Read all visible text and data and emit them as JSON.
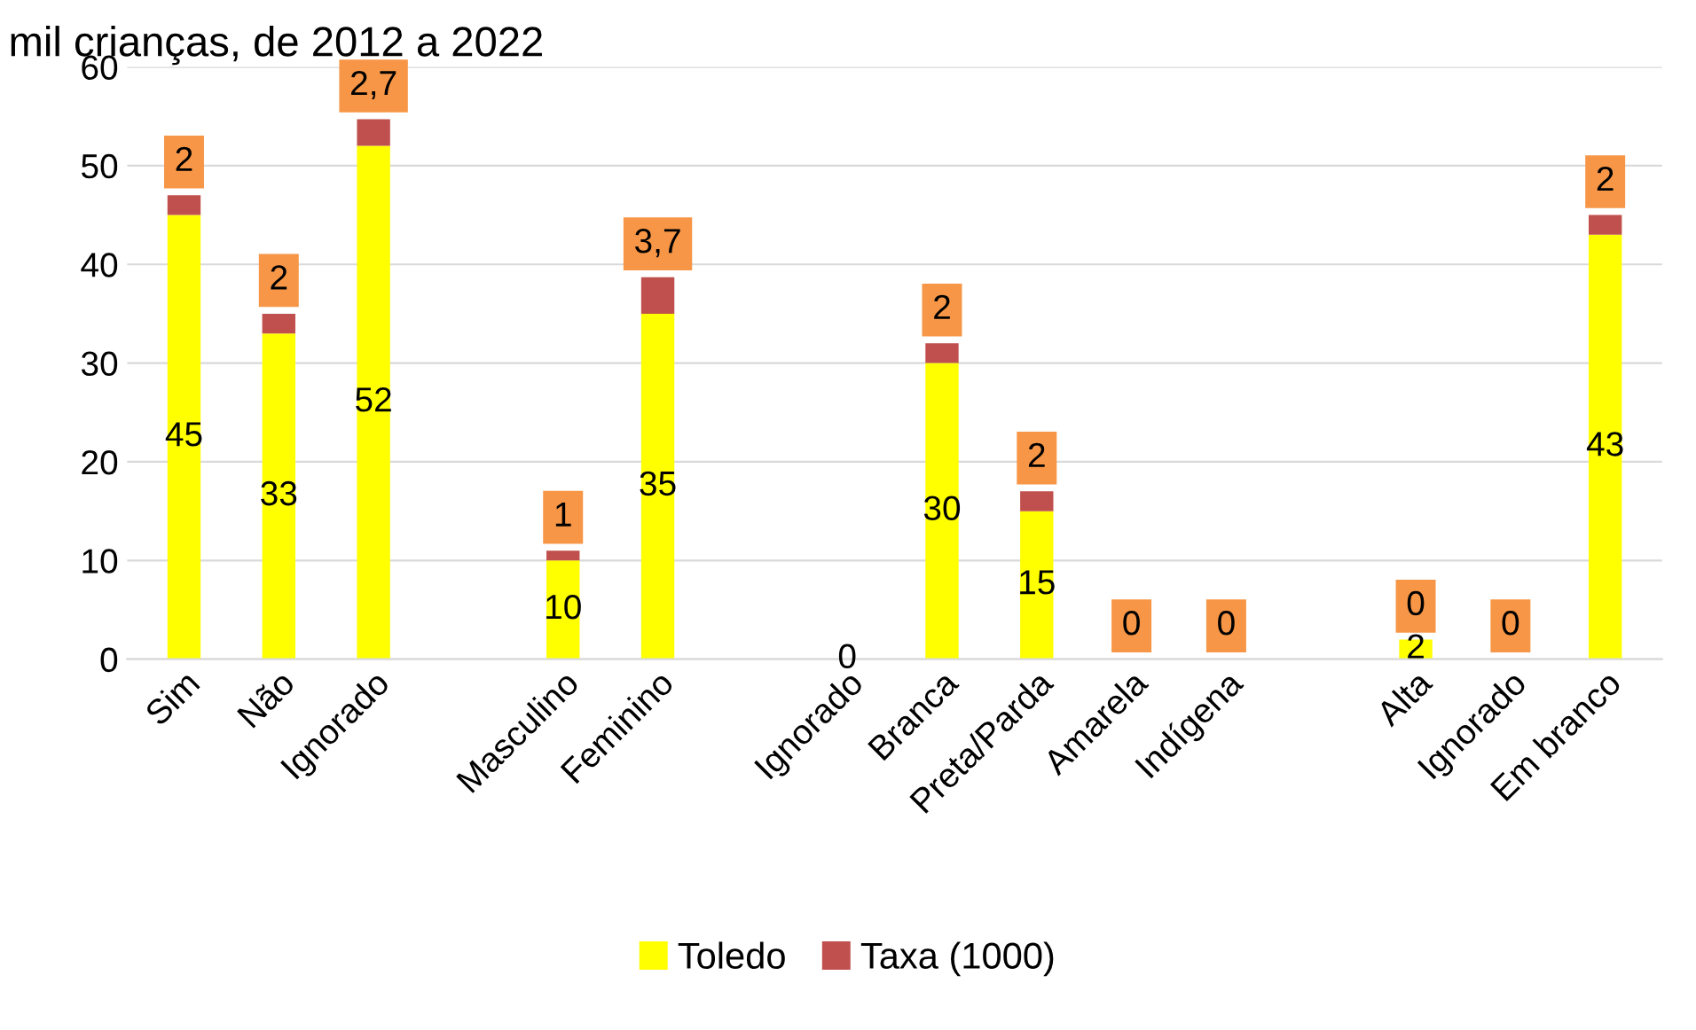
{
  "chart_data": {
    "type": "bar",
    "title": "mil crianças, de 2012 a 2022",
    "stacked": true,
    "categories": [
      "Sim",
      "Não",
      "Ignorado",
      null,
      "Masculino",
      "Feminino",
      null,
      "Ignorado",
      "Branca",
      "Preta/Parda",
      "Amarela",
      "Indígena",
      null,
      "Alta",
      "Ignorado",
      "Em branco"
    ],
    "series": [
      {
        "name": "Toledo",
        "color": "#ffff00",
        "values": [
          45,
          33,
          52,
          null,
          10,
          35,
          null,
          0,
          30,
          15,
          0,
          0,
          null,
          2,
          0,
          43
        ],
        "value_labels": [
          "45",
          "33",
          "52",
          null,
          "10",
          "35",
          null,
          "0",
          "30",
          "15",
          null,
          null,
          null,
          "2",
          null,
          "43"
        ]
      },
      {
        "name": "Taxa (1000)",
        "color": "#c0504d",
        "values": [
          2,
          2,
          2.7,
          null,
          1,
          3.7,
          null,
          null,
          2,
          2,
          0,
          0,
          null,
          0,
          0,
          2
        ],
        "value_labels": [
          "2",
          "2",
          "2,7",
          null,
          "1",
          "3,7",
          null,
          null,
          "2",
          "2",
          "0",
          "0",
          null,
          "0",
          "0",
          "2"
        ]
      }
    ],
    "ylim": [
      0,
      60
    ],
    "yticks": [
      0,
      10,
      20,
      30,
      40,
      50,
      60
    ],
    "grid": "y",
    "legend": "bottom"
  }
}
